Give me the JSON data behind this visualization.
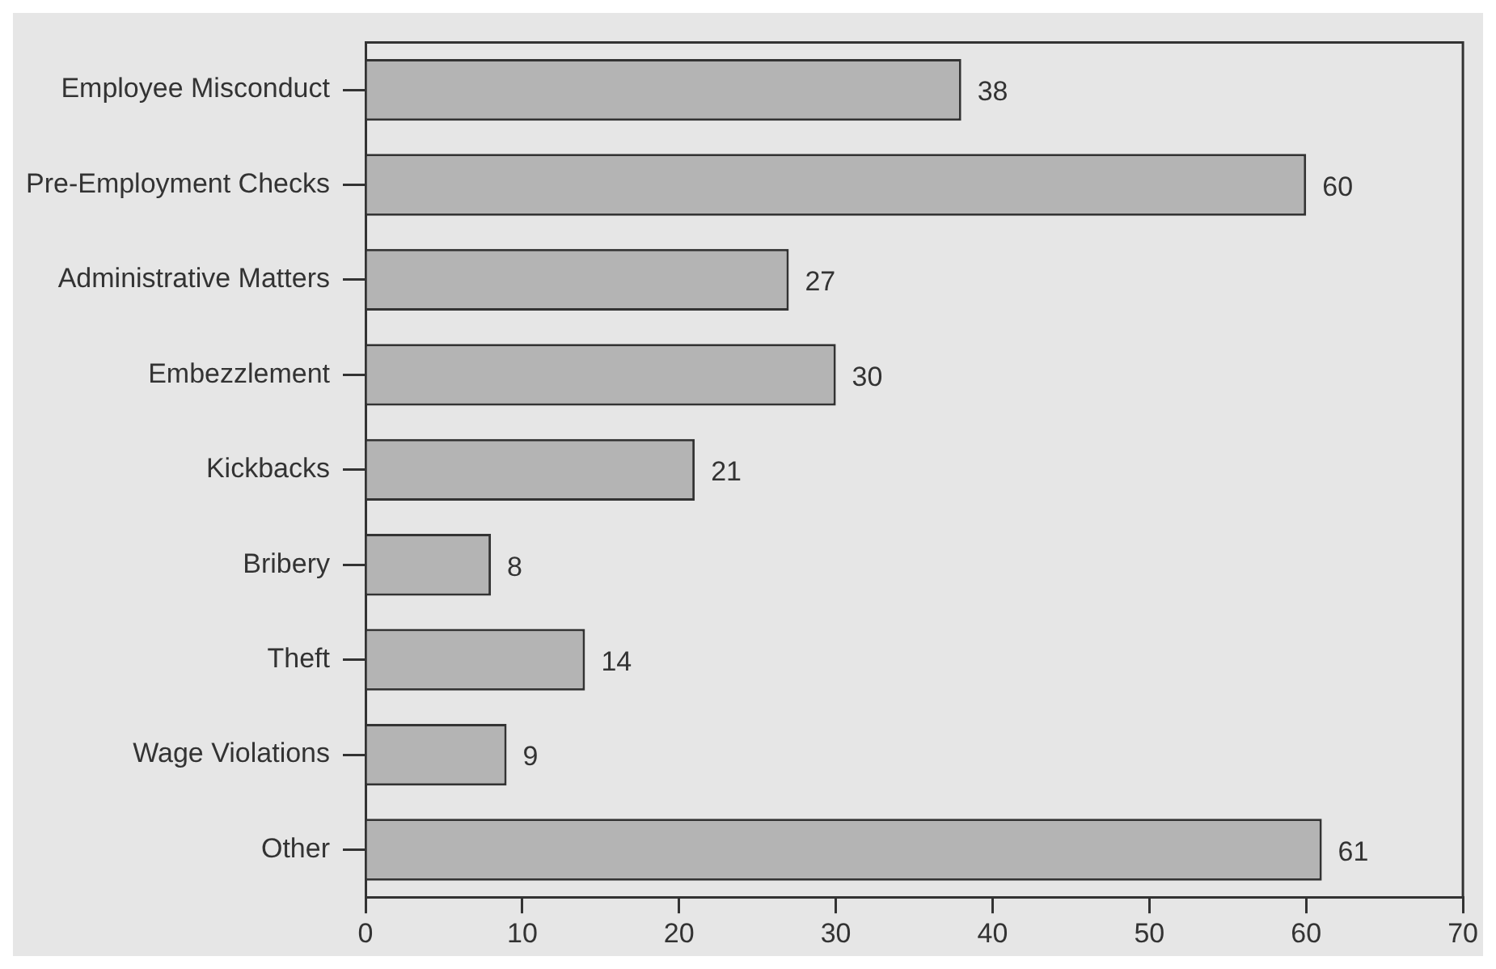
{
  "chart_data": {
    "type": "bar",
    "orientation": "horizontal",
    "categories": [
      "Employee Misconduct",
      "Pre-Employment Checks",
      "Administrative Matters",
      "Embezzlement",
      "Kickbacks",
      "Bribery",
      "Theft",
      "Wage Violations",
      "Other"
    ],
    "values": [
      38,
      60,
      27,
      30,
      21,
      8,
      14,
      9,
      61
    ],
    "color": "#b4b4b4",
    "xlim": [
      0,
      70
    ],
    "xticks": [
      0,
      10,
      20,
      30,
      40,
      50,
      60,
      70
    ],
    "data_labels": true,
    "grid": false,
    "legend": false
  }
}
